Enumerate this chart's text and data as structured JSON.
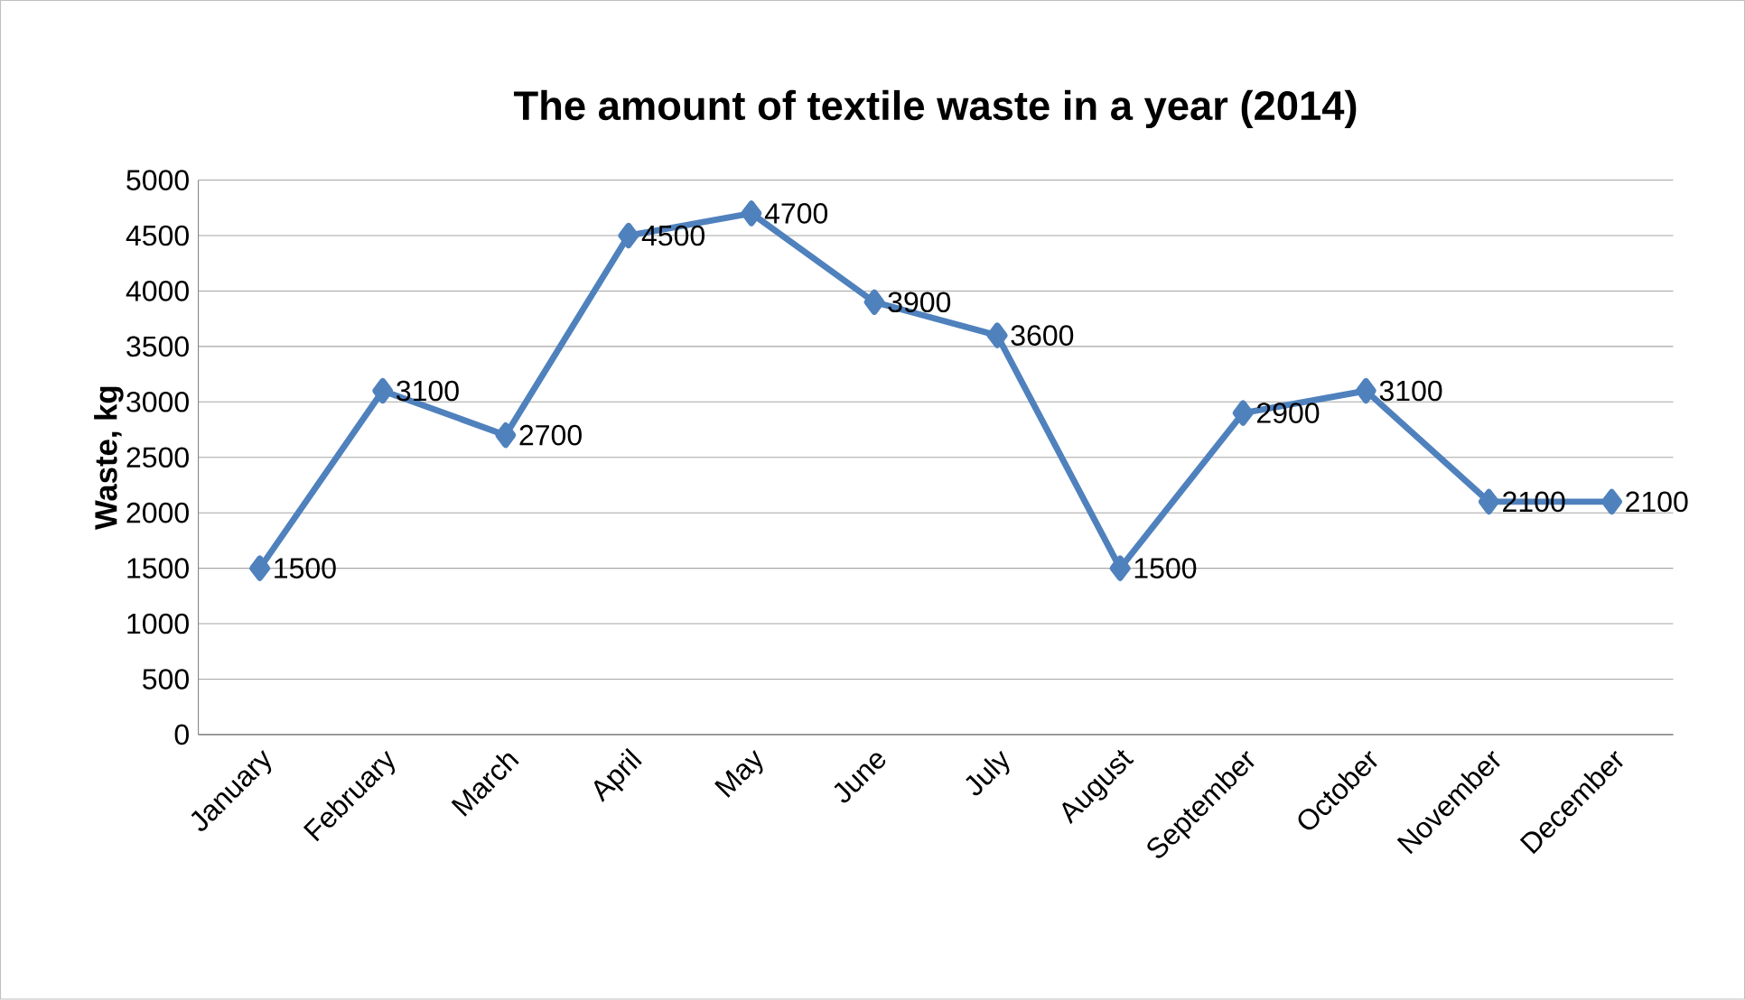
{
  "chart_data": {
    "type": "line",
    "title": "The amount of textile waste in a year (2014)",
    "ylabel": "Waste, kg",
    "categories": [
      "January",
      "February",
      "March",
      "April",
      "May",
      "June",
      "July",
      "August",
      "September",
      "October",
      "November",
      "December"
    ],
    "series": [
      {
        "color": "#4f81bd",
        "values": [
          1500,
          3100,
          2700,
          4500,
          4700,
          3900,
          3600,
          1500,
          2900,
          3100,
          2100,
          2100
        ]
      }
    ],
    "ylim": [
      0,
      5000
    ],
    "yticks": [
      0,
      500,
      1000,
      1500,
      2000,
      2500,
      3000,
      3500,
      4000,
      4500,
      5000
    ],
    "grid": "y",
    "marker": "diamond",
    "line_style": "solid",
    "data_labels": true
  }
}
